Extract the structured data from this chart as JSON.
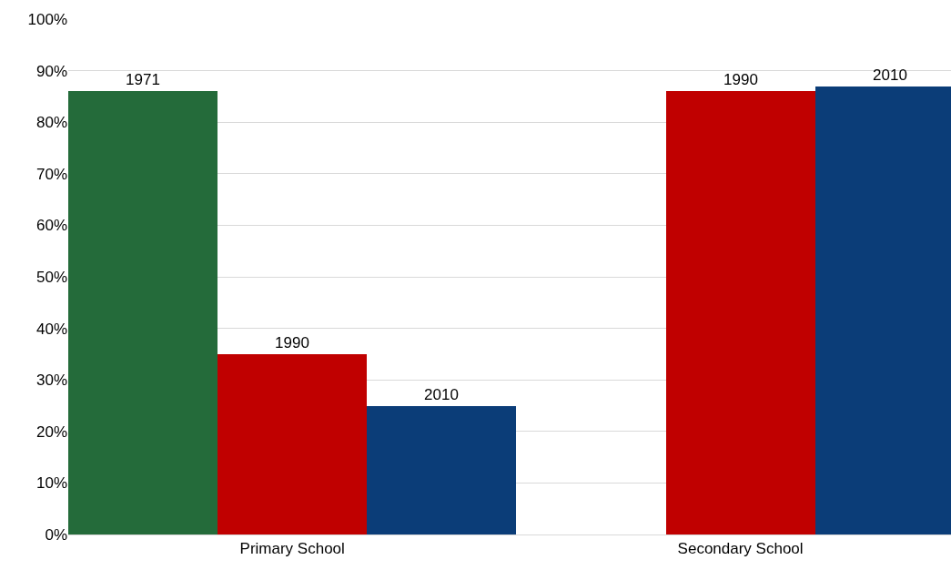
{
  "chart_data": {
    "type": "bar",
    "categories": [
      "Primary School",
      "Secondary School"
    ],
    "series": [
      {
        "name": "1971",
        "color": "#246b3a",
        "values": [
          86,
          null
        ]
      },
      {
        "name": "1990",
        "color": "#c00000",
        "values": [
          35,
          86
        ]
      },
      {
        "name": "2010",
        "color": "#0b3d78",
        "values": [
          25,
          87
        ]
      }
    ],
    "ylim": [
      0,
      100
    ],
    "yticks": [
      {
        "value": 0,
        "label": "0%"
      },
      {
        "value": 10,
        "label": "10%"
      },
      {
        "value": 20,
        "label": "20%"
      },
      {
        "value": 30,
        "label": "30%"
      },
      {
        "value": 40,
        "label": "40%"
      },
      {
        "value": 50,
        "label": "50%"
      },
      {
        "value": 60,
        "label": "60%"
      },
      {
        "value": 70,
        "label": "70%"
      },
      {
        "value": 80,
        "label": "80%"
      },
      {
        "value": 90,
        "label": "90%"
      },
      {
        "value": 100,
        "label": "100%"
      }
    ],
    "grid": "y",
    "legend": false
  }
}
